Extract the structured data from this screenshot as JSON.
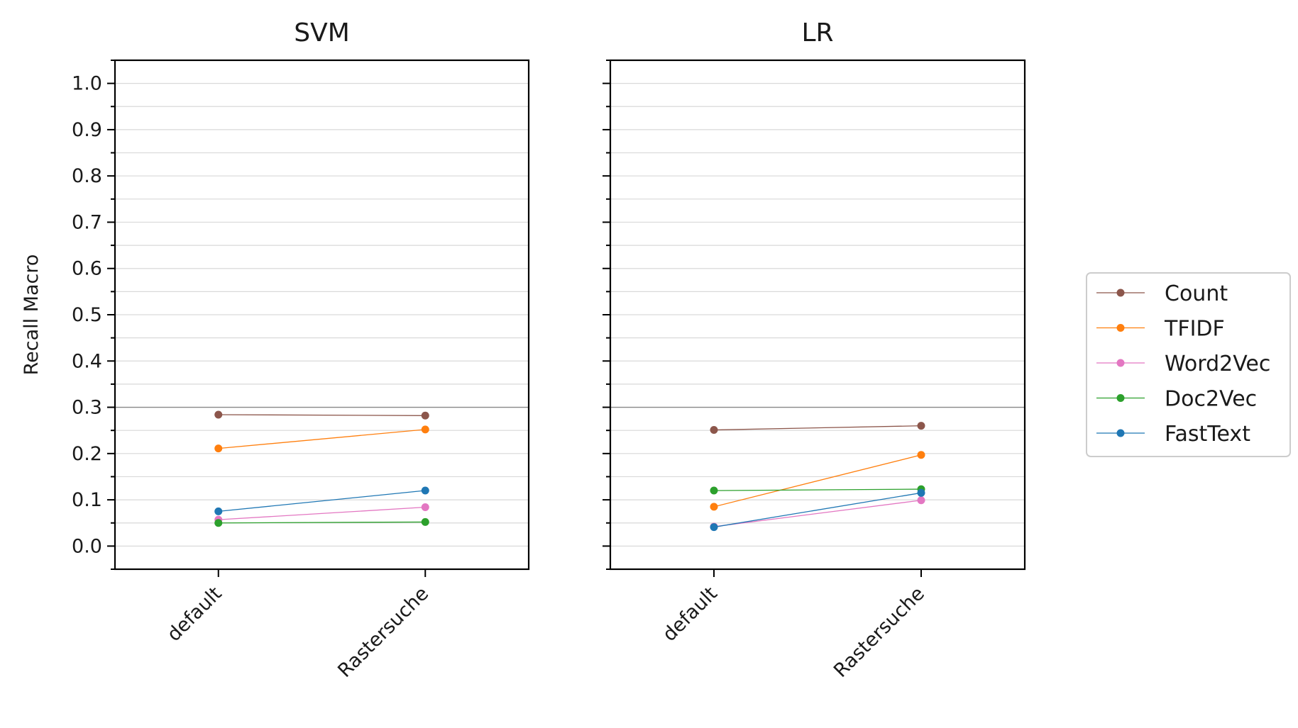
{
  "chart_data": {
    "type": "line",
    "ylabel": "Recall Macro",
    "ylim": [
      -0.05,
      1.05
    ],
    "yticks": [
      "0.0",
      "0.1",
      "0.2",
      "0.3",
      "0.4",
      "0.5",
      "0.6",
      "0.7",
      "0.8",
      "0.9",
      "1.0"
    ],
    "reference_line": 0.3,
    "grid": "horizontal, every 0.05",
    "legend_placement": "right",
    "categories": [
      "default",
      "Rastersuche"
    ],
    "legend": [
      {
        "name": "Count",
        "color": "#8c564b"
      },
      {
        "name": "TFIDF",
        "color": "#ff7f0e"
      },
      {
        "name": "Word2Vec",
        "color": "#e377c2"
      },
      {
        "name": "Doc2Vec",
        "color": "#2ca02c"
      },
      {
        "name": "FastText",
        "color": "#1f77b4"
      }
    ],
    "panels": [
      {
        "title": "SVM",
        "series": [
          {
            "name": "Count",
            "values": [
              0.284,
              0.282
            ]
          },
          {
            "name": "TFIDF",
            "values": [
              0.211,
              0.252
            ]
          },
          {
            "name": "Word2Vec",
            "values": [
              0.057,
              0.084
            ]
          },
          {
            "name": "Doc2Vec",
            "values": [
              0.05,
              0.052
            ]
          },
          {
            "name": "FastText",
            "values": [
              0.075,
              0.12
            ]
          }
        ]
      },
      {
        "title": "LR",
        "series": [
          {
            "name": "Count",
            "values": [
              0.251,
              0.26
            ]
          },
          {
            "name": "TFIDF",
            "values": [
              0.085,
              0.197
            ]
          },
          {
            "name": "Word2Vec",
            "values": [
              0.042,
              0.099
            ]
          },
          {
            "name": "Doc2Vec",
            "values": [
              0.12,
              0.123
            ]
          },
          {
            "name": "FastText",
            "values": [
              0.041,
              0.115
            ]
          }
        ]
      }
    ]
  }
}
